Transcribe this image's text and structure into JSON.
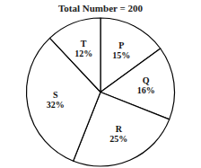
{
  "chart_data": {
    "type": "pie",
    "title": "Total Number = 200",
    "categories": [
      "P",
      "Q",
      "R",
      "S",
      "T"
    ],
    "values": [
      15,
      16,
      25,
      32,
      12
    ],
    "value_labels": [
      "15%",
      "16%",
      "25%",
      "32%",
      "12%"
    ],
    "colors": [
      "white",
      "white",
      "white",
      "white",
      "white"
    ],
    "data_labels": true
  }
}
